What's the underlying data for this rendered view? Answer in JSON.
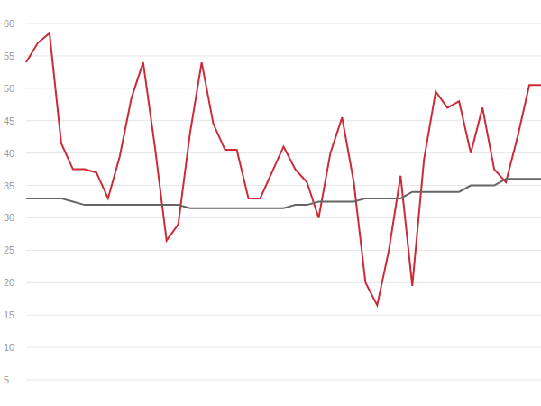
{
  "chart_data": {
    "type": "line",
    "categories": [
      null,
      null,
      null,
      null,
      null,
      null,
      null,
      null,
      null,
      null,
      null,
      null,
      null,
      null,
      null,
      null,
      null,
      null,
      null,
      null,
      null,
      null,
      null,
      null,
      null,
      null,
      null,
      null,
      null,
      null,
      null,
      null,
      null,
      null,
      null,
      null,
      null,
      null,
      null,
      null,
      null,
      null,
      null,
      null,
      null
    ],
    "series": [
      {
        "color": "#cc2a36",
        "values": [
          54,
          57,
          58.5,
          41.5,
          37.5,
          37.5,
          37,
          33,
          39.5,
          48.5,
          54,
          41,
          26.5,
          29,
          43,
          54,
          44.5,
          40.5,
          40.5,
          33,
          33,
          37,
          41,
          37.5,
          35.5,
          30,
          40,
          45.5,
          35.5,
          20,
          16.5,
          25,
          36.5,
          19.5,
          39,
          49.5,
          47,
          48,
          40,
          47,
          37.5,
          35.5,
          42.5,
          50.5,
          50.5
        ]
      },
      {
        "color": "#666666",
        "values": [
          33,
          33,
          33,
          33,
          32.5,
          32,
          32,
          32,
          32,
          32,
          32,
          32,
          32,
          32,
          31.5,
          31.5,
          31.5,
          31.5,
          31.5,
          31.5,
          31.5,
          31.5,
          31.5,
          32,
          32,
          32.5,
          32.5,
          32.5,
          32.5,
          33,
          33,
          33,
          33,
          34,
          34,
          34,
          34,
          34,
          35,
          35,
          35,
          36,
          36,
          36,
          36
        ]
      }
    ],
    "ylim": [
      5,
      60
    ],
    "yticks": [
      5,
      10,
      15,
      20,
      25,
      30,
      35,
      40,
      45,
      50,
      55,
      60
    ],
    "grid": true,
    "tick_labels": "y"
  }
}
